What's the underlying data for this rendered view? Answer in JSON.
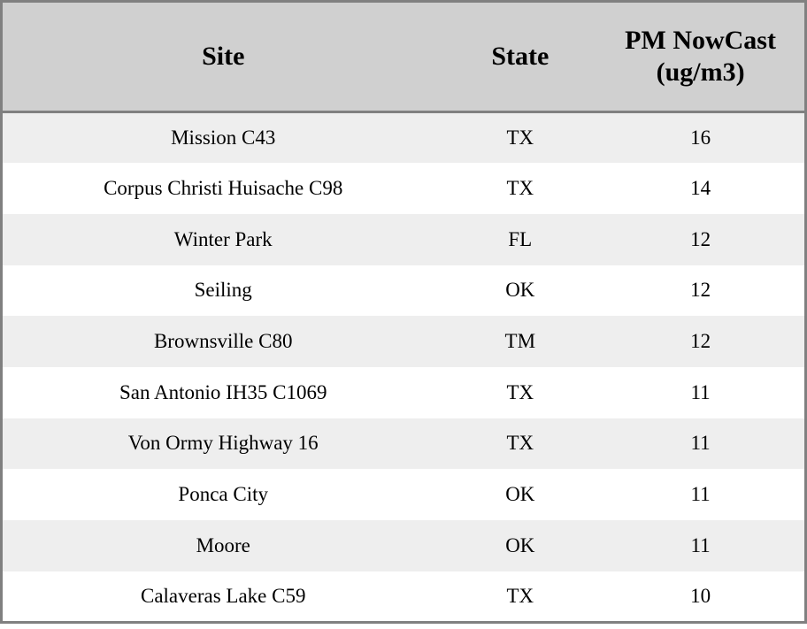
{
  "chart_data": {
    "type": "table",
    "columns": [
      "Site",
      "State",
      "PM NowCast (ug/m3)"
    ],
    "rows": [
      [
        "Mission C43",
        "TX",
        16
      ],
      [
        "Corpus Christi Huisache C98",
        "TX",
        14
      ],
      [
        "Winter Park",
        "FL",
        12
      ],
      [
        "Seiling",
        "OK",
        12
      ],
      [
        "Brownsville C80",
        "TM",
        12
      ],
      [
        "San Antonio IH35 C1069",
        "TX",
        11
      ],
      [
        "Von Ormy Highway 16",
        "TX",
        11
      ],
      [
        "Ponca City",
        "OK",
        11
      ],
      [
        "Moore",
        "OK",
        11
      ],
      [
        "Calaveras Lake C59",
        "TX",
        10
      ]
    ]
  },
  "colors": {
    "header_bg": "#d0d0d0",
    "row_odd_bg": "#eeeeee",
    "row_even_bg": "#ffffff",
    "border": "#808080",
    "text": "#000000"
  }
}
